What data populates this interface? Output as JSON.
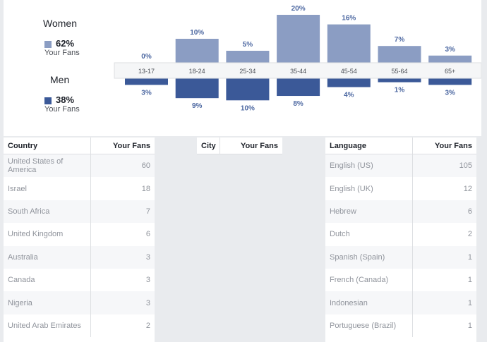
{
  "gender": {
    "women": {
      "title": "Women",
      "percent": "62%",
      "sub": "Your Fans",
      "color": "#8b9dc3"
    },
    "men": {
      "title": "Men",
      "percent": "38%",
      "sub": "Your Fans",
      "color": "#3b5998"
    }
  },
  "chart_data": {
    "type": "bar",
    "categories": [
      "13-17",
      "18-24",
      "25-34",
      "35-44",
      "45-54",
      "55-64",
      "65+"
    ],
    "series": [
      {
        "name": "Women",
        "values": [
          0,
          10,
          5,
          20,
          16,
          7,
          3
        ],
        "labels": [
          "0%",
          "10%",
          "5%",
          "20%",
          "16%",
          "7%",
          "3%"
        ],
        "color": "#8b9dc3"
      },
      {
        "name": "Men",
        "values": [
          3,
          9,
          10,
          8,
          4,
          1,
          3
        ],
        "labels": [
          "3%",
          "9%",
          "10%",
          "8%",
          "4%",
          "1%",
          "3%"
        ],
        "color": "#3b5998"
      }
    ],
    "ylim": [
      0,
      20
    ],
    "grid": false
  },
  "country_table": {
    "headers": [
      "Country",
      "Your Fans"
    ],
    "rows": [
      [
        "United States of America",
        "60"
      ],
      [
        "Israel",
        "18"
      ],
      [
        "South Africa",
        "7"
      ],
      [
        "United Kingdom",
        "6"
      ],
      [
        "Australia",
        "3"
      ],
      [
        "Canada",
        "3"
      ],
      [
        "Nigeria",
        "3"
      ],
      [
        "United Arab Emirates",
        "2"
      ]
    ]
  },
  "city_table": {
    "headers": [
      "City",
      "Your Fans"
    ],
    "rows": []
  },
  "language_table": {
    "headers": [
      "Language",
      "Your Fans"
    ],
    "rows": [
      [
        "English (US)",
        "105"
      ],
      [
        "English (UK)",
        "12"
      ],
      [
        "Hebrew",
        "6"
      ],
      [
        "Dutch",
        "2"
      ],
      [
        "Spanish (Spain)",
        "1"
      ],
      [
        "French (Canada)",
        "1"
      ],
      [
        "Indonesian",
        "1"
      ],
      [
        "Portuguese (Brazil)",
        "1"
      ]
    ]
  }
}
